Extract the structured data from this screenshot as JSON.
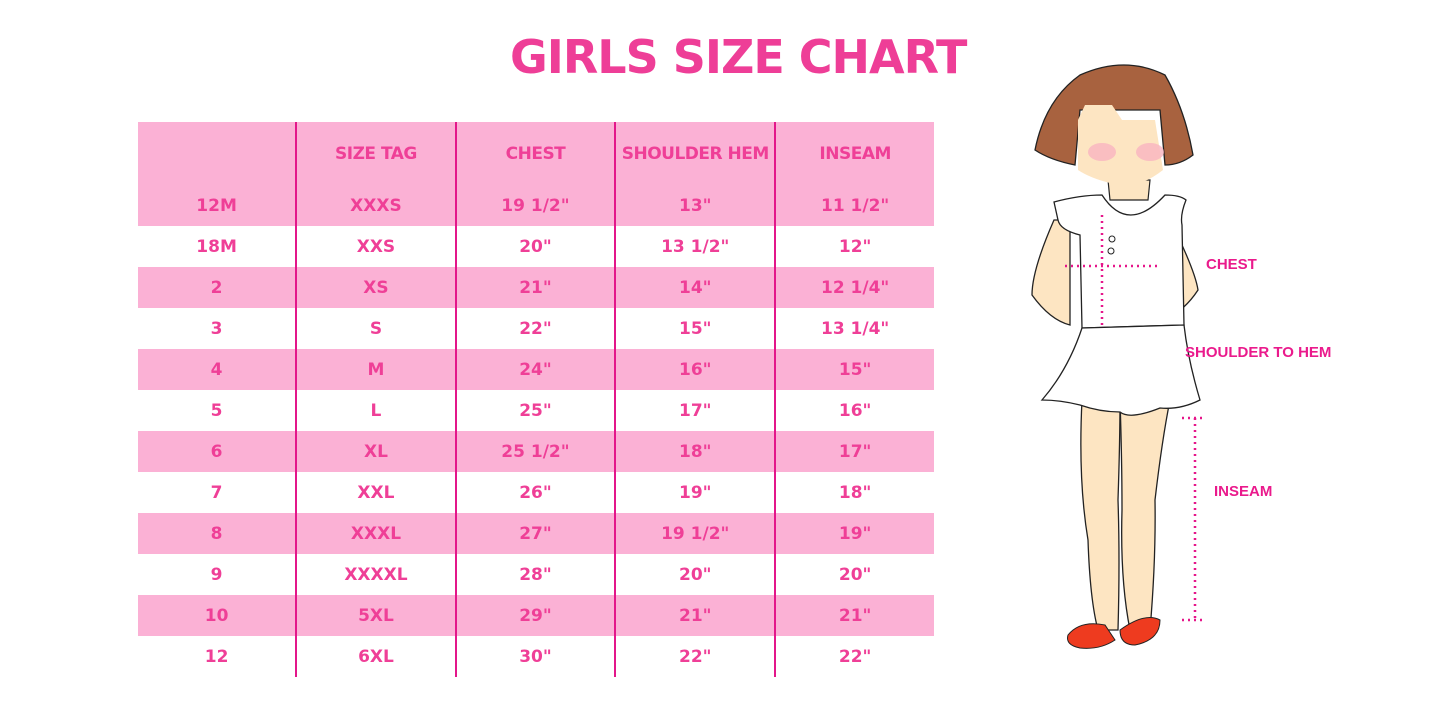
{
  "title": "GIRLS SIZE CHART",
  "table": {
    "headers": [
      "",
      "SIZE TAG",
      "CHEST",
      "SHOULDER HEM",
      "INSEAM"
    ],
    "rows": [
      [
        "12M",
        "XXXS",
        "19 1/2\"",
        "13\"",
        "11 1/2\""
      ],
      [
        "18M",
        "XXS",
        "20\"",
        "13 1/2\"",
        "12\""
      ],
      [
        "2",
        "XS",
        "21\"",
        "14\"",
        "12 1/4\""
      ],
      [
        "3",
        "S",
        "22\"",
        "15\"",
        "13 1/4\""
      ],
      [
        "4",
        "M",
        "24\"",
        "16\"",
        "15\""
      ],
      [
        "5",
        "L",
        "25\"",
        "17\"",
        "16\""
      ],
      [
        "6",
        "XL",
        "25 1/2\"",
        "18\"",
        "17\""
      ],
      [
        "7",
        "XXL",
        "26\"",
        "19\"",
        "18\""
      ],
      [
        "8",
        "XXXL",
        "27\"",
        "19 1/2\"",
        "19\""
      ],
      [
        "9",
        "XXXXL",
        "28\"",
        "20\"",
        "20\""
      ],
      [
        "10",
        "5XL",
        "29\"",
        "21\"",
        "21\""
      ],
      [
        "12",
        "6XL",
        "30\"",
        "22\"",
        "22\""
      ]
    ]
  },
  "illustration": {
    "labels": {
      "chest": "CHEST",
      "shoulder_to_hem": "SHOULDER TO HEM",
      "inseam": "INSEAM"
    }
  },
  "colors": {
    "accent": "#ee3e97",
    "row_pink": "#fbb1d5",
    "divider": "#e3168a"
  }
}
